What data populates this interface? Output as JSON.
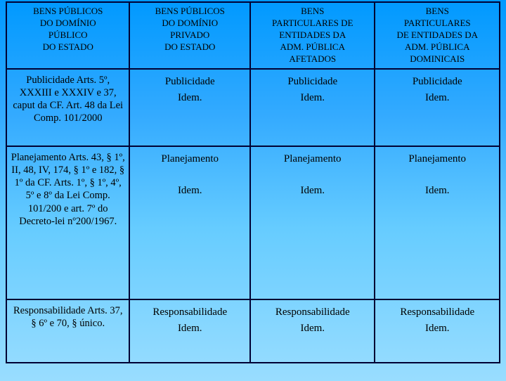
{
  "table": {
    "headers": {
      "h1_l1": "BENS PÚBLICOS",
      "h1_l2": "DO DOMÍNIO",
      "h1_l3": "PÚBLICO",
      "h1_l4": "DO ESTADO",
      "h2_l1": "BENS PÚBLICOS",
      "h2_l2": "DO DOMÍNIO",
      "h2_l3": "PRIVADO",
      "h2_l4": "DO ESTADO",
      "h3_l1": "BENS",
      "h3_l2": "PARTICULARES DE",
      "h3_l3": "ENTIDADES DA",
      "h3_l4": "ADM. PÚBLICA",
      "h3_l5": "AFETADOS",
      "h4_l1": "BENS",
      "h4_l2": "PARTICULARES",
      "h4_l3": "DE ENTIDADES DA",
      "h4_l4": "ADM. PÚBLICA",
      "h4_l5": "DOMINICAIS"
    },
    "rows": {
      "r2": {
        "label": "Publicidade Arts. 5º, XXXIII e XXXIV e 37, caput da CF. Art. 48 da Lei Comp. 101/2000",
        "c2_l1": "Publicidade",
        "c2_l2": "Idem.",
        "c3_l1": "Publicidade",
        "c3_l2": "Idem.",
        "c4_l1": "Publicidade",
        "c4_l2": "Idem."
      },
      "r3": {
        "label": "Planejamento Arts. 43, § 1º, II, 48, IV, 174, § 1º e 182, § 1º da CF.  Arts. 1º, § 1º, 4º, 5º e 8º da Lei Comp. 101/200 e art. 7º do Decreto-lei nº200/1967.",
        "c2_l1": "Planejamento",
        "c2_l2": "Idem.",
        "c3_l1": "Planejamento",
        "c3_l2": "Idem.",
        "c4_l1": "Planejamento",
        "c4_l2": "Idem."
      },
      "r4": {
        "label": "Responsabilidade Arts. 37, § 6º e 70, § único.",
        "c2_l1": "Responsabilidade",
        "c2_l2": "Idem.",
        "c3_l1": "Responsabilidade",
        "c3_l2": "Idem.",
        "c4_l1": "Responsabilidade",
        "c4_l2": "Idem."
      }
    }
  },
  "colors": {
    "border": "#000033",
    "bg_top": "#0099ff",
    "bg_bottom": "#99ddff"
  }
}
